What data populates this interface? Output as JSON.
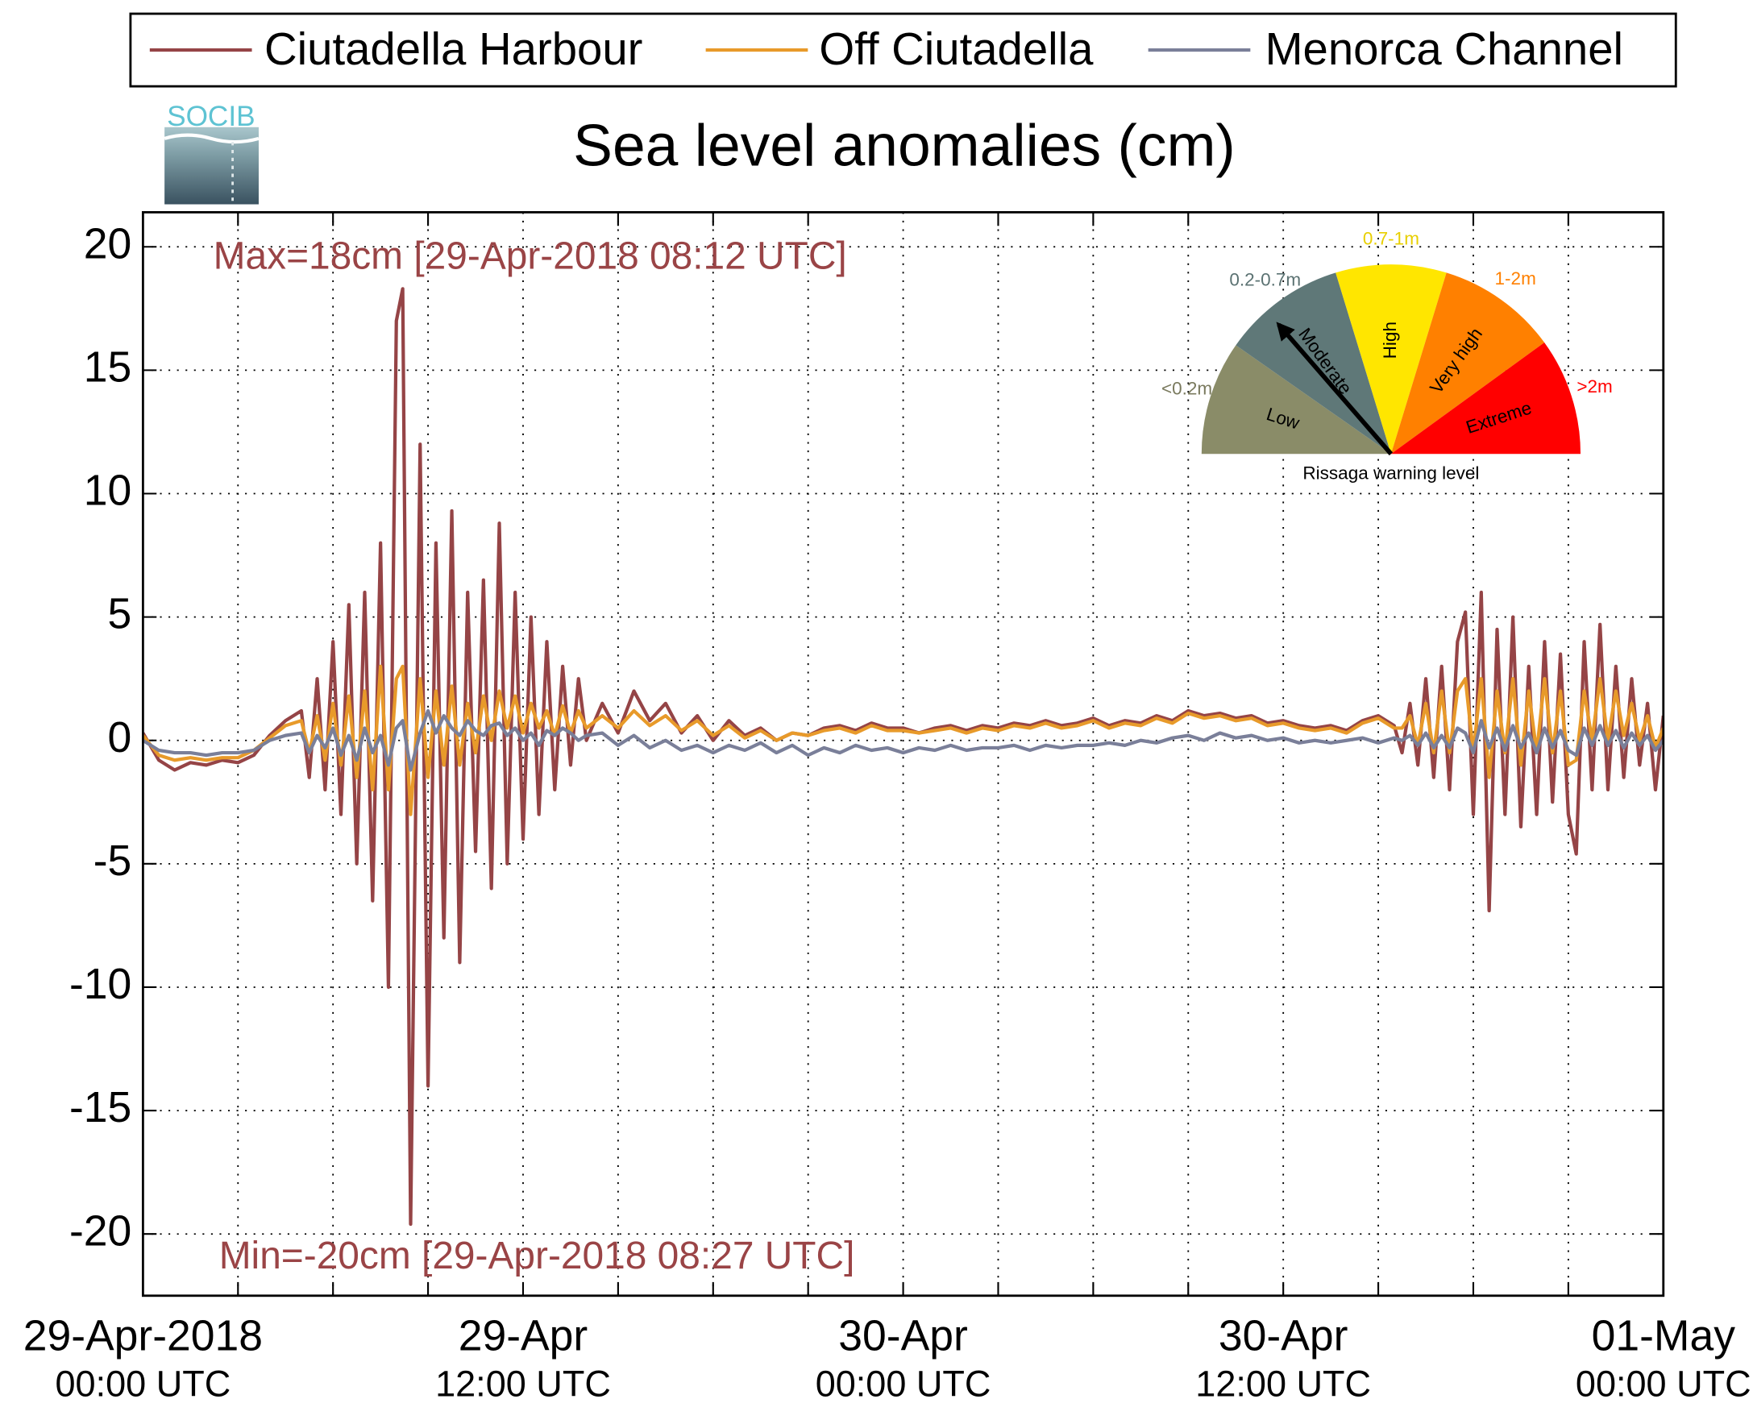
{
  "chart_data": {
    "type": "line",
    "title": "Sea level anomalies (cm)",
    "logo": "SOCIB",
    "legend": "top",
    "grid": true,
    "xlim": [
      0,
      48
    ],
    "ylim": [
      -22.5,
      21.4
    ],
    "yticks": [
      -20,
      -15,
      -10,
      -5,
      0,
      5,
      10,
      15,
      20
    ],
    "xticks": [
      {
        "value": 0,
        "label": [
          "29-Apr-2018",
          "00:00 UTC"
        ]
      },
      {
        "value": 12,
        "label": [
          "29-Apr",
          "12:00 UTC"
        ]
      },
      {
        "value": 24,
        "label": [
          "30-Apr",
          "00:00 UTC"
        ]
      },
      {
        "value": 36,
        "label": [
          "30-Apr",
          "12:00 UTC"
        ]
      },
      {
        "value": 48,
        "label": [
          "01-May",
          "00:00 UTC"
        ]
      }
    ],
    "xminor_ticks": [
      3,
      6,
      9,
      15,
      18,
      21,
      27,
      30,
      33,
      39,
      42,
      45
    ],
    "annotations": [
      {
        "text": "Max=18cm [29-Apr-2018 08:12 UTC]",
        "color": "#9a4446",
        "corner": "top"
      },
      {
        "text": "Min=-20cm [29-Apr-2018 08:27 UTC]",
        "color": "#9a4446",
        "corner": "bottom"
      }
    ],
    "x": [
      0,
      0.5,
      1,
      1.5,
      2,
      2.5,
      3,
      3.5,
      4,
      4.5,
      5,
      5.25,
      5.5,
      5.75,
      6,
      6.25,
      6.5,
      6.75,
      7,
      7.25,
      7.5,
      7.75,
      8,
      8.2,
      8.45,
      8.75,
      9,
      9.25,
      9.5,
      9.75,
      10,
      10.25,
      10.5,
      10.75,
      11,
      11.25,
      11.5,
      11.75,
      12,
      12.25,
      12.5,
      12.75,
      13,
      13.25,
      13.5,
      13.75,
      14,
      14.5,
      15,
      15.5,
      16,
      16.5,
      17,
      17.5,
      18,
      18.5,
      19,
      19.5,
      20,
      20.5,
      21,
      21.5,
      22,
      22.5,
      23,
      23.5,
      24,
      24.5,
      25,
      25.5,
      26,
      26.5,
      27,
      27.5,
      28,
      28.5,
      29,
      29.5,
      30,
      30.5,
      31,
      31.5,
      32,
      32.5,
      33,
      33.5,
      34,
      34.5,
      35,
      35.5,
      36,
      36.5,
      37,
      37.5,
      38,
      38.5,
      39,
      39.5,
      39.75,
      40,
      40.25,
      40.5,
      40.75,
      41,
      41.25,
      41.5,
      41.75,
      42,
      42.25,
      42.5,
      42.75,
      43,
      43.25,
      43.5,
      43.75,
      44,
      44.25,
      44.5,
      44.75,
      45,
      45.25,
      45.5,
      45.75,
      46,
      46.25,
      46.5,
      46.75,
      47,
      47.25,
      47.5,
      47.75,
      48
    ],
    "series": [
      {
        "name": "Ciutadella Harbour",
        "color": "#954446",
        "values": [
          0.3,
          -0.8,
          -1.2,
          -0.9,
          -1.0,
          -0.8,
          -0.9,
          -0.6,
          0.2,
          0.8,
          1.2,
          -1.5,
          2.5,
          -2,
          4,
          -3,
          5.5,
          -5,
          6,
          -6.5,
          8,
          -10,
          17,
          18.3,
          -19.6,
          12,
          -14,
          8,
          -8,
          9.3,
          -9,
          6,
          -4.5,
          6.5,
          -6,
          8.8,
          -5,
          6,
          -4,
          5,
          -3,
          4,
          -2,
          3,
          -1,
          2.5,
          0,
          1.5,
          0.3,
          2,
          0.8,
          1.5,
          0.3,
          1,
          0,
          0.8,
          0.2,
          0.5,
          0,
          0.3,
          0.2,
          0.5,
          0.6,
          0.4,
          0.7,
          0.5,
          0.5,
          0.3,
          0.5,
          0.6,
          0.4,
          0.6,
          0.5,
          0.7,
          0.6,
          0.8,
          0.6,
          0.7,
          0.9,
          0.6,
          0.8,
          0.7,
          1,
          0.8,
          1.2,
          1,
          1.1,
          0.9,
          1,
          0.7,
          0.8,
          0.6,
          0.5,
          0.6,
          0.4,
          0.8,
          1,
          0.6,
          -0.5,
          1.5,
          -1,
          2.5,
          -1.5,
          3,
          -2,
          4,
          5.2,
          -3,
          6,
          -6.9,
          4.5,
          -3,
          5,
          -3.5,
          3,
          -3,
          4,
          -2.5,
          3.5,
          -3,
          -4.6,
          4,
          -2,
          4.7,
          -2,
          3,
          -1.5,
          2.5,
          -1,
          1.5,
          -2,
          1
        ]
      },
      {
        "name": "Off Ciutadella",
        "color": "#e89a2a",
        "values": [
          0.2,
          -0.6,
          -0.8,
          -0.7,
          -0.8,
          -0.7,
          -0.7,
          -0.4,
          0.1,
          0.6,
          0.8,
          -0.5,
          1,
          -0.8,
          1.5,
          -1,
          1.8,
          -1.5,
          2,
          -2,
          3,
          -2,
          2.5,
          3,
          -3,
          2.5,
          -1.5,
          2,
          -1,
          2.2,
          -1,
          1.5,
          -0.5,
          1.8,
          0,
          2,
          0.5,
          1.8,
          0.3,
          1.5,
          0.5,
          1.2,
          0.2,
          1.4,
          0.3,
          1.2,
          0.5,
          1,
          0.5,
          1.2,
          0.6,
          1,
          0.4,
          0.8,
          0.2,
          0.6,
          0.1,
          0.4,
          0,
          0.3,
          0.2,
          0.4,
          0.5,
          0.3,
          0.6,
          0.4,
          0.4,
          0.3,
          0.4,
          0.5,
          0.3,
          0.5,
          0.4,
          0.6,
          0.5,
          0.7,
          0.5,
          0.6,
          0.8,
          0.5,
          0.7,
          0.6,
          0.9,
          0.7,
          1.1,
          0.9,
          1,
          0.8,
          0.9,
          0.6,
          0.7,
          0.5,
          0.4,
          0.5,
          0.3,
          0.7,
          0.9,
          0.5,
          0.5,
          1,
          -0.2,
          1.5,
          -0.5,
          2,
          -0.5,
          2,
          2.5,
          -0.5,
          2.5,
          -1.5,
          2,
          -0.5,
          2.5,
          -1,
          2,
          -0.5,
          2.5,
          -0.5,
          2,
          -1,
          -0.8,
          2,
          0,
          2.5,
          0,
          2,
          0.2,
          1.5,
          0,
          1,
          -0.3,
          0.5
        ]
      },
      {
        "name": "Menorca Channel",
        "color": "#7a7f99",
        "values": [
          0,
          -0.4,
          -0.5,
          -0.5,
          -0.6,
          -0.5,
          -0.5,
          -0.4,
          0,
          0.2,
          0.3,
          -0.5,
          0.2,
          -0.3,
          0.5,
          -0.6,
          0.2,
          -0.8,
          0.5,
          -0.5,
          0.2,
          -1,
          0.5,
          0.8,
          -1.2,
          0.3,
          1.2,
          0.3,
          1,
          0.5,
          0.2,
          0.8,
          0.4,
          0.2,
          0.6,
          0.7,
          0.2,
          0.5,
          0,
          0.3,
          -0.2,
          0.4,
          0.2,
          0.5,
          0.3,
          0,
          0.2,
          0.3,
          -0.2,
          0.2,
          -0.3,
          0,
          -0.4,
          -0.2,
          -0.5,
          -0.2,
          -0.4,
          -0.1,
          -0.5,
          -0.2,
          -0.6,
          -0.3,
          -0.5,
          -0.2,
          -0.4,
          -0.3,
          -0.5,
          -0.3,
          -0.4,
          -0.2,
          -0.4,
          -0.3,
          -0.3,
          -0.2,
          -0.4,
          -0.2,
          -0.3,
          -0.2,
          -0.2,
          -0.1,
          -0.2,
          0,
          -0.1,
          0.1,
          0.2,
          0,
          0.3,
          0.1,
          0.2,
          0,
          0.1,
          -0.1,
          0,
          -0.1,
          0,
          0.1,
          -0.1,
          0.1,
          0,
          0.2,
          -0.2,
          0.3,
          -0.3,
          0.2,
          -0.3,
          0.5,
          0.3,
          -0.5,
          0.8,
          -0.3,
          0.5,
          -0.4,
          0.6,
          -0.3,
          0.3,
          -0.5,
          0.5,
          -0.3,
          0.4,
          -0.4,
          -0.6,
          0.5,
          -0.2,
          0.6,
          -0.2,
          0.4,
          -0.3,
          0.3,
          -0.2,
          0.2,
          -0.4,
          0
        ]
      }
    ],
    "gauge": {
      "title": "Rissaga warning level",
      "levels": [
        {
          "name": "Low",
          "range": "<0.2m",
          "color": "#8a8c68",
          "label_color": "#7a7a5e"
        },
        {
          "name": "Moderate",
          "range": "0.2-0.7m",
          "color": "#5f7878",
          "label_color": "#5b7272"
        },
        {
          "name": "High",
          "range": "0.7-1m",
          "color": "#ffe600",
          "label_color": "#e8cf00"
        },
        {
          "name": "Very high",
          "range": "1-2m",
          "color": "#ff8000",
          "label_color": "#ff8000"
        },
        {
          "name": "Extreme",
          "range": ">2m",
          "color": "#ff0000",
          "label_color": "#ff0000"
        }
      ]
    }
  }
}
